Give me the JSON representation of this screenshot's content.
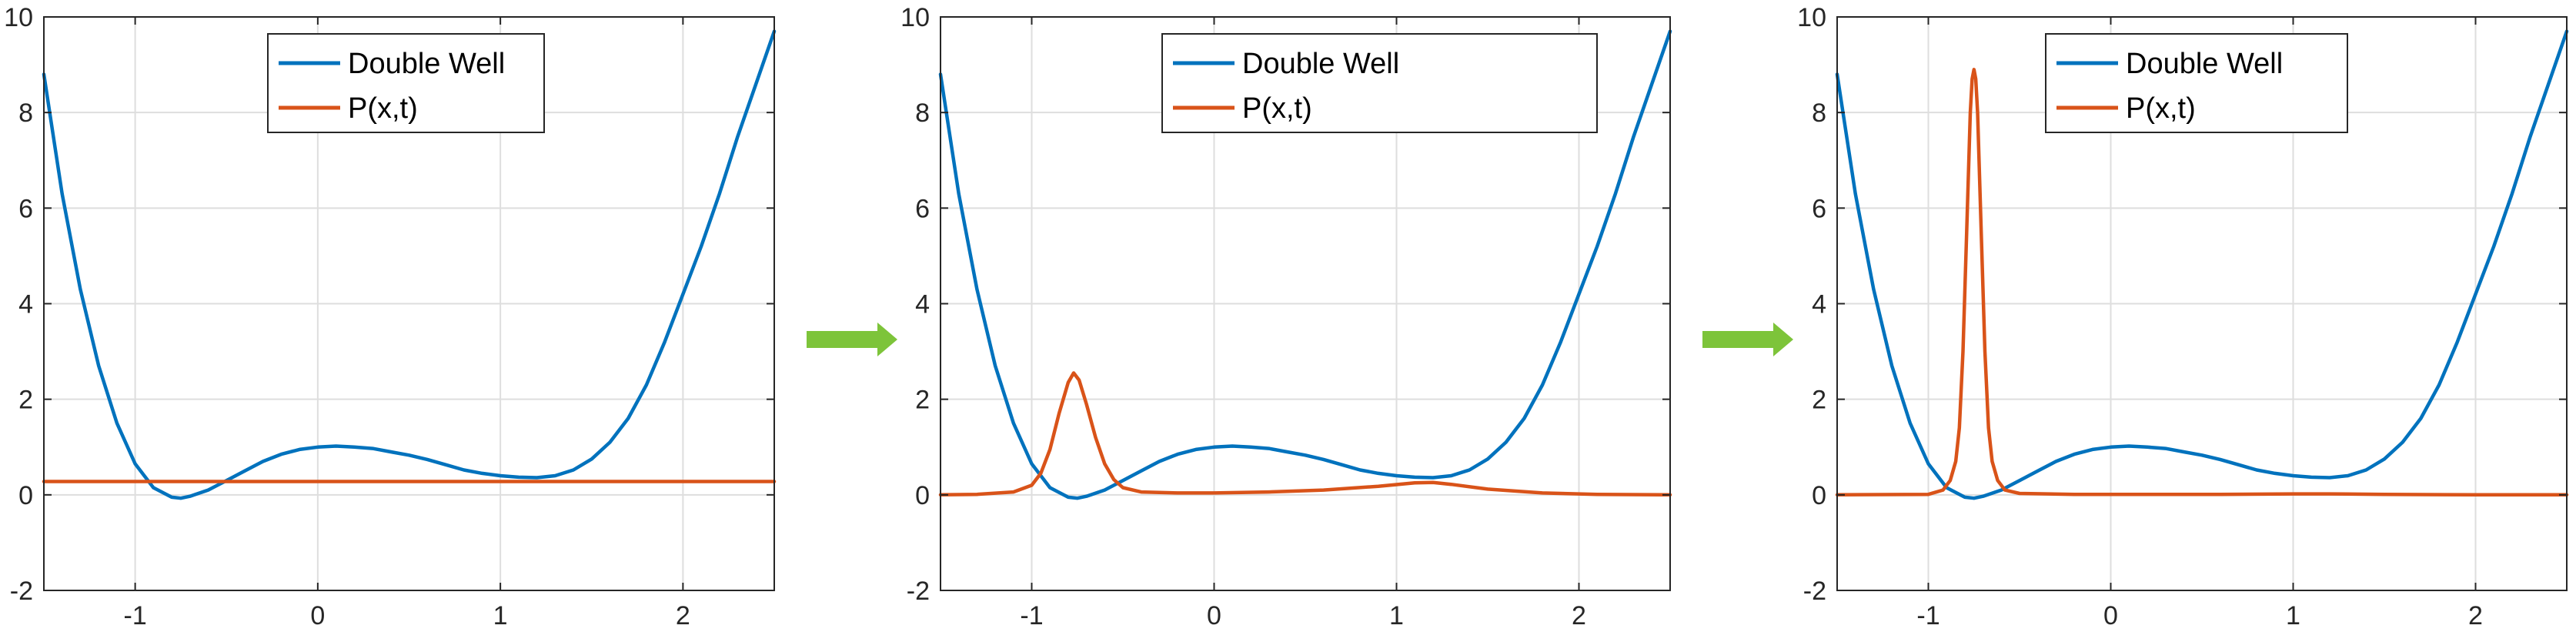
{
  "colors": {
    "double_well": "#0072BD",
    "probability": "#D95319",
    "arrow": "#7DC43A",
    "grid": "#DEDEDE",
    "axes": "#262626"
  },
  "legend": {
    "labels": [
      "Double Well",
      "P(x,t)"
    ],
    "placement": "top-center"
  },
  "arrows": [
    {
      "name": "arrow-icon",
      "meaning": "time progression"
    },
    {
      "name": "arrow-icon",
      "meaning": "time progression"
    }
  ],
  "chart_data": [
    {
      "type": "line",
      "title": "",
      "xlabel": "",
      "ylabel": "",
      "xlim": [
        -1.5,
        2.5
      ],
      "ylim": [
        -2,
        10
      ],
      "xticks": [
        -1,
        0,
        1,
        2
      ],
      "xtick_labels": [
        "-1",
        "0",
        "1",
        "2"
      ],
      "yticks": [
        -2,
        0,
        2,
        4,
        6,
        8,
        10
      ],
      "ytick_labels": [
        "-2",
        "0",
        "2",
        "4",
        "6",
        "8",
        "10"
      ],
      "grid": true,
      "legend_placement": "top-center",
      "series": [
        {
          "name": "Double Well",
          "x": [
            -1.5,
            -1.4,
            -1.3,
            -1.2,
            -1.1,
            -1.0,
            -0.9,
            -0.8,
            -0.75,
            -0.7,
            -0.6,
            -0.5,
            -0.4,
            -0.3,
            -0.2,
            -0.1,
            0.0,
            0.1,
            0.2,
            0.3,
            0.4,
            0.5,
            0.6,
            0.7,
            0.8,
            0.9,
            1.0,
            1.1,
            1.2,
            1.3,
            1.4,
            1.5,
            1.6,
            1.7,
            1.8,
            1.9,
            2.0,
            2.1,
            2.2,
            2.3,
            2.4,
            2.5
          ],
          "y": [
            8.8,
            6.3,
            4.3,
            2.7,
            1.5,
            0.65,
            0.15,
            -0.05,
            -0.07,
            -0.03,
            0.1,
            0.3,
            0.5,
            0.7,
            0.85,
            0.95,
            1.0,
            1.02,
            1.0,
            0.97,
            0.9,
            0.83,
            0.74,
            0.63,
            0.52,
            0.45,
            0.4,
            0.37,
            0.36,
            0.4,
            0.52,
            0.75,
            1.1,
            1.6,
            2.3,
            3.2,
            4.2,
            5.2,
            6.3,
            7.5,
            8.6,
            9.7
          ]
        },
        {
          "name": "P(x,t)",
          "x": [
            -1.5,
            -1.0,
            -0.5,
            0.0,
            0.5,
            1.0,
            1.5,
            2.0,
            2.5
          ],
          "y": [
            0.28,
            0.28,
            0.28,
            0.28,
            0.28,
            0.28,
            0.28,
            0.28,
            0.28
          ]
        }
      ]
    },
    {
      "type": "line",
      "title": "",
      "xlabel": "",
      "ylabel": "",
      "xlim": [
        -1.5,
        2.5
      ],
      "ylim": [
        -2,
        10
      ],
      "xticks": [
        -1,
        0,
        1,
        2
      ],
      "xtick_labels": [
        "-1",
        "0",
        "1",
        "2"
      ],
      "yticks": [
        -2,
        0,
        2,
        4,
        6,
        8,
        10
      ],
      "ytick_labels": [
        "-2",
        "0",
        "2",
        "4",
        "6",
        "8",
        "10"
      ],
      "grid": true,
      "legend_placement": "top-right",
      "series": [
        {
          "name": "Double Well",
          "x": [
            -1.5,
            -1.4,
            -1.3,
            -1.2,
            -1.1,
            -1.0,
            -0.9,
            -0.8,
            -0.75,
            -0.7,
            -0.6,
            -0.5,
            -0.4,
            -0.3,
            -0.2,
            -0.1,
            0.0,
            0.1,
            0.2,
            0.3,
            0.4,
            0.5,
            0.6,
            0.7,
            0.8,
            0.9,
            1.0,
            1.1,
            1.2,
            1.3,
            1.4,
            1.5,
            1.6,
            1.7,
            1.8,
            1.9,
            2.0,
            2.1,
            2.2,
            2.3,
            2.4,
            2.5
          ],
          "y": [
            8.8,
            6.3,
            4.3,
            2.7,
            1.5,
            0.65,
            0.15,
            -0.05,
            -0.07,
            -0.03,
            0.1,
            0.3,
            0.5,
            0.7,
            0.85,
            0.95,
            1.0,
            1.02,
            1.0,
            0.97,
            0.9,
            0.83,
            0.74,
            0.63,
            0.52,
            0.45,
            0.4,
            0.37,
            0.36,
            0.4,
            0.52,
            0.75,
            1.1,
            1.6,
            2.3,
            3.2,
            4.2,
            5.2,
            6.3,
            7.5,
            8.6,
            9.7
          ]
        },
        {
          "name": "P(x,t)",
          "x": [
            -1.5,
            -1.3,
            -1.1,
            -1.0,
            -0.95,
            -0.9,
            -0.85,
            -0.8,
            -0.77,
            -0.74,
            -0.7,
            -0.65,
            -0.6,
            -0.55,
            -0.5,
            -0.4,
            -0.2,
            0.0,
            0.3,
            0.6,
            0.9,
            1.1,
            1.2,
            1.3,
            1.5,
            1.8,
            2.1,
            2.5
          ],
          "y": [
            0.0,
            0.01,
            0.06,
            0.2,
            0.45,
            0.95,
            1.7,
            2.35,
            2.55,
            2.4,
            1.9,
            1.2,
            0.65,
            0.32,
            0.15,
            0.06,
            0.04,
            0.04,
            0.06,
            0.1,
            0.18,
            0.25,
            0.26,
            0.22,
            0.12,
            0.04,
            0.01,
            0.0
          ]
        }
      ]
    },
    {
      "type": "line",
      "title": "",
      "xlabel": "",
      "ylabel": "",
      "xlim": [
        -1.5,
        2.5
      ],
      "ylim": [
        -2,
        10
      ],
      "xticks": [
        -1,
        0,
        1,
        2
      ],
      "xtick_labels": [
        "-1",
        "0",
        "1",
        "2"
      ],
      "yticks": [
        -2,
        0,
        2,
        4,
        6,
        8,
        10
      ],
      "ytick_labels": [
        "-2",
        "0",
        "2",
        "4",
        "6",
        "8",
        "10"
      ],
      "grid": true,
      "legend_placement": "top-center",
      "series": [
        {
          "name": "Double Well",
          "x": [
            -1.5,
            -1.4,
            -1.3,
            -1.2,
            -1.1,
            -1.0,
            -0.9,
            -0.8,
            -0.75,
            -0.7,
            -0.6,
            -0.5,
            -0.4,
            -0.3,
            -0.2,
            -0.1,
            0.0,
            0.1,
            0.2,
            0.3,
            0.4,
            0.5,
            0.6,
            0.7,
            0.8,
            0.9,
            1.0,
            1.1,
            1.2,
            1.3,
            1.4,
            1.5,
            1.6,
            1.7,
            1.8,
            1.9,
            2.0,
            2.1,
            2.2,
            2.3,
            2.4,
            2.5
          ],
          "y": [
            8.8,
            6.3,
            4.3,
            2.7,
            1.5,
            0.65,
            0.15,
            -0.05,
            -0.07,
            -0.03,
            0.1,
            0.3,
            0.5,
            0.7,
            0.85,
            0.95,
            1.0,
            1.02,
            1.0,
            0.97,
            0.9,
            0.83,
            0.74,
            0.63,
            0.52,
            0.45,
            0.4,
            0.37,
            0.36,
            0.4,
            0.52,
            0.75,
            1.1,
            1.6,
            2.3,
            3.2,
            4.2,
            5.2,
            6.3,
            7.5,
            8.6,
            9.7
          ]
        },
        {
          "name": "P(x,t)",
          "x": [
            -1.5,
            -1.0,
            -0.92,
            -0.88,
            -0.85,
            -0.83,
            -0.81,
            -0.79,
            -0.77,
            -0.76,
            -0.75,
            -0.74,
            -0.73,
            -0.71,
            -0.69,
            -0.67,
            -0.65,
            -0.62,
            -0.58,
            -0.5,
            -0.2,
            0.2,
            0.6,
            1.0,
            1.2,
            1.5,
            2.0,
            2.5
          ],
          "y": [
            0.0,
            0.01,
            0.1,
            0.3,
            0.7,
            1.4,
            3.0,
            5.5,
            8.0,
            8.7,
            8.9,
            8.7,
            8.0,
            5.5,
            3.0,
            1.4,
            0.7,
            0.3,
            0.1,
            0.03,
            0.01,
            0.01,
            0.01,
            0.02,
            0.02,
            0.01,
            0.0,
            0.0
          ]
        }
      ]
    }
  ]
}
